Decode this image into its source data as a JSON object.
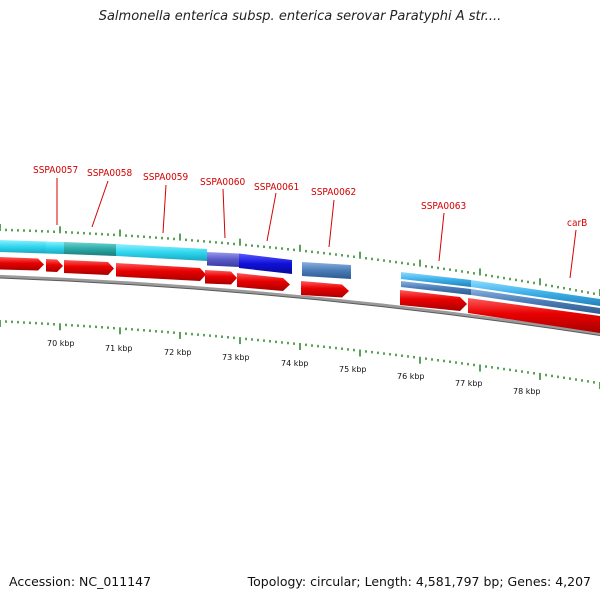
{
  "title": "Salmonella enterica subsp. enterica serovar Paratyphi A str....",
  "footer": {
    "accession": "Accession: NC_011147",
    "summary": "Topology: circular; Length: 4,581,797 bp; Genes: 4,207"
  },
  "colors": {
    "cds_red": "#e80000",
    "cog_cyan": "#2fd6ee",
    "cog_teal": "#2aa8a6",
    "cog_blue": "#1010d8",
    "cog_steel": "#4a7cb8",
    "cog_sky": "#3db0ea",
    "gene_label": "#d40000",
    "tick_green": "#127a12",
    "backbone": "#8a8a8a"
  },
  "gene_labels": [
    "SSPA0057",
    "SSPA0058",
    "SSPA0059",
    "SSPA0060",
    "SSPA0061",
    "SSPA0062",
    "SSPA0063",
    "carB"
  ],
  "scale_labels": [
    "70 kbp",
    "71 kbp",
    "72 kbp",
    "73 kbp",
    "74 kbp",
    "75 kbp",
    "76 kbp",
    "77 kbp",
    "78 kbp"
  ]
}
